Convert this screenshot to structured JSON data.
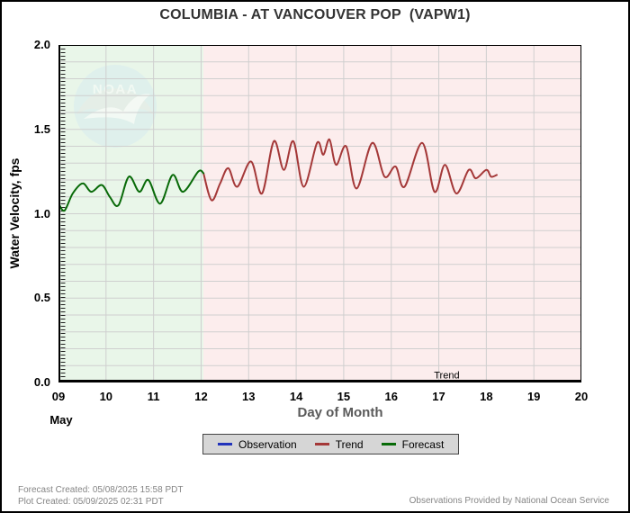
{
  "chart_data": {
    "type": "line",
    "title": "COLUMBIA - AT VANCOUVER POP  (VAPW1)",
    "xlabel": "Day of Month",
    "ylabel": "Water Velocity, fps",
    "month_label": "May",
    "xlim": [
      9,
      20
    ],
    "ylim": [
      0.0,
      2.0
    ],
    "x_ticks": [
      {
        "v": 9,
        "label": "09"
      },
      {
        "v": 10,
        "label": "10"
      },
      {
        "v": 11,
        "label": "11"
      },
      {
        "v": 12,
        "label": "12"
      },
      {
        "v": 13,
        "label": "13"
      },
      {
        "v": 14,
        "label": "14"
      },
      {
        "v": 15,
        "label": "15"
      },
      {
        "v": 16,
        "label": "16"
      },
      {
        "v": 17,
        "label": "17"
      },
      {
        "v": 18,
        "label": "18"
      },
      {
        "v": 19,
        "label": "19"
      },
      {
        "v": 20,
        "label": "20"
      }
    ],
    "y_ticks": [
      {
        "v": 0.0,
        "label": "0.0"
      },
      {
        "v": 0.5,
        "label": "0.5"
      },
      {
        "v": 1.0,
        "label": "1.0"
      },
      {
        "v": 1.5,
        "label": "1.5"
      },
      {
        "v": 2.0,
        "label": "2.0"
      }
    ],
    "grid": {
      "x_step": 1,
      "y_step": 0.1,
      "color": "#cfcfcf",
      "on": true
    },
    "regions": [
      {
        "name": "forecast-region",
        "from": 9,
        "to": 12.05,
        "color": "#e9f6e9"
      },
      {
        "name": "trend-region",
        "from": 12.05,
        "to": 20,
        "color": "#fceded"
      }
    ],
    "annotations": [
      {
        "text": "Trend",
        "x": 16.9,
        "y": 0.025
      }
    ],
    "legend_position": "bottom",
    "series": [
      {
        "name": "Observation",
        "color": "#2233bb",
        "points": []
      },
      {
        "name": "Trend",
        "color": "#a43838",
        "points": [
          [
            12.05,
            1.24
          ],
          [
            12.22,
            1.08
          ],
          [
            12.4,
            1.18
          ],
          [
            12.57,
            1.27
          ],
          [
            12.76,
            1.16
          ],
          [
            13.05,
            1.31
          ],
          [
            13.28,
            1.12
          ],
          [
            13.53,
            1.43
          ],
          [
            13.74,
            1.26
          ],
          [
            13.94,
            1.43
          ],
          [
            14.16,
            1.16
          ],
          [
            14.44,
            1.42
          ],
          [
            14.57,
            1.35
          ],
          [
            14.7,
            1.44
          ],
          [
            14.84,
            1.29
          ],
          [
            15.05,
            1.4
          ],
          [
            15.27,
            1.15
          ],
          [
            15.6,
            1.42
          ],
          [
            15.86,
            1.22
          ],
          [
            16.09,
            1.28
          ],
          [
            16.28,
            1.16
          ],
          [
            16.65,
            1.42
          ],
          [
            16.91,
            1.13
          ],
          [
            17.13,
            1.29
          ],
          [
            17.37,
            1.12
          ],
          [
            17.63,
            1.26
          ],
          [
            17.78,
            1.21
          ],
          [
            18.0,
            1.26
          ],
          [
            18.1,
            1.22
          ],
          [
            18.22,
            1.23
          ]
        ]
      },
      {
        "name": "Forecast",
        "color": "#086a08",
        "points": [
          [
            9.02,
            1.05
          ],
          [
            9.13,
            1.02
          ],
          [
            9.3,
            1.12
          ],
          [
            9.51,
            1.18
          ],
          [
            9.69,
            1.13
          ],
          [
            9.91,
            1.17
          ],
          [
            10.08,
            1.1
          ],
          [
            10.26,
            1.05
          ],
          [
            10.48,
            1.22
          ],
          [
            10.7,
            1.13
          ],
          [
            10.89,
            1.2
          ],
          [
            11.14,
            1.06
          ],
          [
            11.4,
            1.23
          ],
          [
            11.62,
            1.13
          ],
          [
            11.94,
            1.25
          ],
          [
            12.05,
            1.24
          ]
        ]
      }
    ]
  },
  "watermark": {
    "text": "NOAA"
  },
  "footer": {
    "forecast_created": "Forecast Created: 05/08/2025 15:58 PDT",
    "plot_created": "Plot Created: 05/09/2025 02:31 PDT",
    "provider": "Observations Provided by National Ocean Service"
  }
}
